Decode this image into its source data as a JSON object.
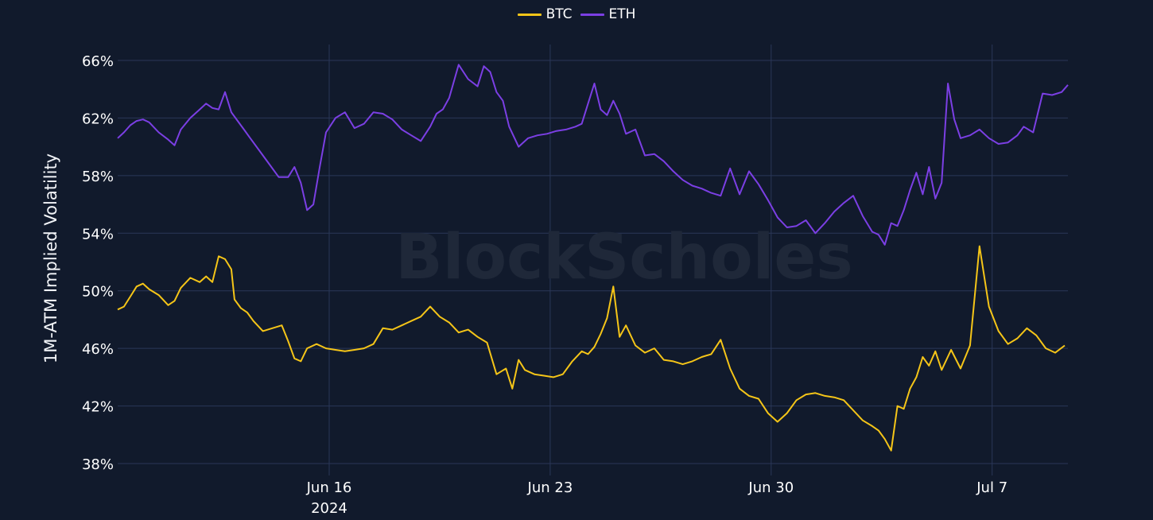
{
  "legend": {
    "items": [
      {
        "label": "BTC",
        "color": "#f5c518"
      },
      {
        "label": "ETH",
        "color": "#7b3fe4"
      }
    ]
  },
  "watermark": "BlockScholes",
  "colors": {
    "background": "#111a2c",
    "grid": "#2a3758",
    "tick_text": "#ffffff",
    "watermark": "#1f2839"
  },
  "chart_data": {
    "type": "line",
    "title": "",
    "xlabel": "",
    "ylabel": "1M-ATM Implied Volatility",
    "ylim": [
      38,
      66
    ],
    "yticks": [
      38,
      42,
      46,
      50,
      54,
      58,
      62,
      66
    ],
    "ytick_labels": [
      "38%",
      "42%",
      "46%",
      "50%",
      "54%",
      "58%",
      "62%",
      "66%"
    ],
    "x_range_days": [
      9.3,
      39.4
    ],
    "x_unit": "day of June 2024 (Jul 1 = 31)",
    "xticks": [
      16,
      23,
      30,
      37
    ],
    "xtick_labels": [
      "Jun 16\n2024",
      "Jun 23",
      "Jun 30",
      "Jul 7"
    ],
    "grid": true,
    "legend_position": "top-center",
    "series": [
      {
        "name": "BTC",
        "color": "#f5c518",
        "x": [
          9.3,
          9.5,
          9.7,
          9.9,
          10.1,
          10.3,
          10.6,
          10.9,
          11.1,
          11.3,
          11.6,
          11.9,
          12.1,
          12.3,
          12.5,
          12.7,
          12.9,
          13.0,
          13.2,
          13.4,
          13.6,
          13.9,
          14.2,
          14.5,
          14.7,
          14.9,
          15.1,
          15.3,
          15.6,
          15.9,
          16.2,
          16.5,
          16.8,
          17.1,
          17.4,
          17.7,
          18.0,
          18.3,
          18.6,
          18.9,
          19.2,
          19.5,
          19.8,
          20.1,
          20.4,
          20.7,
          21.0,
          21.3,
          21.6,
          21.8,
          22.0,
          22.2,
          22.5,
          22.8,
          23.1,
          23.4,
          23.7,
          24.0,
          24.2,
          24.4,
          24.6,
          24.8,
          25.0,
          25.2,
          25.4,
          25.7,
          26.0,
          26.3,
          26.6,
          26.9,
          27.2,
          27.5,
          27.8,
          28.1,
          28.4,
          28.7,
          29.0,
          29.3,
          29.6,
          29.9,
          30.2,
          30.5,
          30.8,
          31.1,
          31.4,
          31.7,
          32.0,
          32.3,
          32.6,
          32.9,
          33.2,
          33.4,
          33.6,
          33.8,
          34.0,
          34.2,
          34.4,
          34.6,
          34.8,
          35.0,
          35.2,
          35.4,
          35.7,
          36.0,
          36.3,
          36.6,
          36.9,
          37.2,
          37.5,
          37.8,
          38.1,
          38.4,
          38.7,
          39.0,
          39.3
        ],
        "values": [
          48.7,
          48.9,
          49.6,
          50.3,
          50.5,
          50.1,
          49.7,
          49.0,
          49.3,
          50.2,
          50.9,
          50.6,
          51.0,
          50.6,
          52.4,
          52.2,
          51.5,
          49.4,
          48.8,
          48.5,
          47.9,
          47.2,
          47.4,
          47.6,
          46.5,
          45.3,
          45.1,
          46.0,
          46.3,
          46.0,
          45.9,
          45.8,
          45.9,
          46.0,
          46.3,
          47.4,
          47.3,
          47.6,
          47.9,
          48.2,
          48.9,
          48.2,
          47.8,
          47.1,
          47.3,
          46.8,
          46.4,
          44.2,
          44.6,
          43.2,
          45.2,
          44.5,
          44.2,
          44.1,
          44.0,
          44.2,
          45.1,
          45.8,
          45.6,
          46.1,
          47.0,
          48.1,
          50.3,
          46.8,
          47.6,
          46.2,
          45.7,
          46.0,
          45.2,
          45.1,
          44.9,
          45.1,
          45.4,
          45.6,
          46.6,
          44.6,
          43.2,
          42.7,
          42.5,
          41.5,
          40.9,
          41.5,
          42.4,
          42.8,
          42.9,
          42.7,
          42.6,
          42.4,
          41.7,
          41.0,
          40.6,
          40.3,
          39.7,
          38.9,
          42.0,
          41.8,
          43.2,
          44.0,
          45.4,
          44.8,
          45.8,
          44.5,
          45.9,
          44.6,
          46.2,
          53.1,
          48.9,
          47.2,
          46.3,
          46.7,
          47.4,
          46.9,
          46.0,
          45.7,
          46.2
        ]
      },
      {
        "name": "ETH",
        "color": "#7b3fe4",
        "x": [
          9.3,
          9.5,
          9.7,
          9.9,
          10.1,
          10.3,
          10.6,
          10.9,
          11.1,
          11.3,
          11.6,
          11.9,
          12.1,
          12.3,
          12.5,
          12.7,
          12.9,
          13.1,
          13.3,
          13.5,
          13.8,
          14.1,
          14.4,
          14.7,
          14.9,
          15.1,
          15.3,
          15.5,
          15.7,
          15.9,
          16.2,
          16.5,
          16.8,
          17.1,
          17.4,
          17.7,
          18.0,
          18.3,
          18.6,
          18.9,
          19.2,
          19.4,
          19.6,
          19.8,
          20.1,
          20.4,
          20.7,
          20.9,
          21.1,
          21.3,
          21.5,
          21.7,
          22.0,
          22.3,
          22.6,
          22.9,
          23.2,
          23.5,
          23.8,
          24.0,
          24.2,
          24.4,
          24.6,
          24.8,
          25.0,
          25.2,
          25.4,
          25.7,
          26.0,
          26.3,
          26.6,
          26.9,
          27.2,
          27.5,
          27.8,
          28.1,
          28.4,
          28.7,
          29.0,
          29.3,
          29.6,
          29.9,
          30.2,
          30.5,
          30.8,
          31.1,
          31.4,
          31.7,
          32.0,
          32.3,
          32.6,
          32.9,
          33.2,
          33.4,
          33.6,
          33.8,
          34.0,
          34.2,
          34.4,
          34.6,
          34.8,
          35.0,
          35.2,
          35.4,
          35.6,
          35.8,
          36.0,
          36.3,
          36.6,
          36.9,
          37.2,
          37.5,
          37.8,
          38.0,
          38.3,
          38.6,
          38.9,
          39.2,
          39.4
        ],
        "values": [
          60.6,
          61.0,
          61.5,
          61.8,
          61.9,
          61.7,
          61.0,
          60.5,
          60.1,
          61.2,
          62.0,
          62.6,
          63.0,
          62.7,
          62.6,
          63.8,
          62.4,
          61.8,
          61.2,
          60.6,
          59.7,
          58.8,
          57.9,
          57.9,
          58.6,
          57.5,
          55.6,
          56.0,
          58.6,
          61.0,
          62.0,
          62.4,
          61.3,
          61.6,
          62.4,
          62.3,
          61.9,
          61.2,
          60.8,
          60.4,
          61.4,
          62.3,
          62.6,
          63.4,
          65.7,
          64.7,
          64.2,
          65.6,
          65.2,
          63.8,
          63.2,
          61.4,
          60.0,
          60.6,
          60.8,
          60.9,
          61.1,
          61.2,
          61.4,
          61.6,
          63.0,
          64.4,
          62.6,
          62.2,
          63.2,
          62.3,
          60.9,
          61.2,
          59.4,
          59.5,
          59.0,
          58.3,
          57.7,
          57.3,
          57.1,
          56.8,
          56.6,
          58.5,
          56.7,
          58.3,
          57.4,
          56.3,
          55.1,
          54.4,
          54.5,
          54.9,
          54.0,
          54.7,
          55.5,
          56.1,
          56.6,
          55.2,
          54.1,
          53.9,
          53.2,
          54.7,
          54.5,
          55.6,
          57.0,
          58.2,
          56.7,
          58.6,
          56.4,
          57.5,
          64.4,
          61.9,
          60.6,
          60.8,
          61.2,
          60.6,
          60.2,
          60.3,
          60.8,
          61.4,
          61.0,
          63.7,
          63.6,
          63.8,
          64.3
        ]
      }
    ]
  }
}
